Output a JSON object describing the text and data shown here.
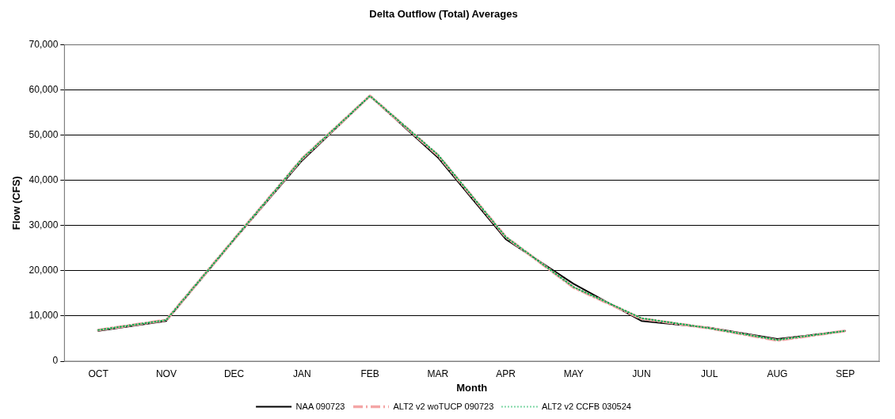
{
  "chart_data": {
    "type": "line",
    "title": "Delta Outflow (Total) Averages",
    "xlabel": "Month",
    "ylabel": "Flow (CFS)",
    "categories": [
      "OCT",
      "NOV",
      "DEC",
      "JAN",
      "FEB",
      "MAR",
      "APR",
      "MAY",
      "JUN",
      "JUL",
      "AUG",
      "SEP"
    ],
    "series": [
      {
        "name": "NAA 090723",
        "color": "#000000",
        "line_style": "solid",
        "values": [
          6700,
          8900,
          26900,
          44400,
          58700,
          45100,
          27000,
          17100,
          8900,
          7400,
          4900,
          6700
        ]
      },
      {
        "name": "ALT2 v2 woTUCP 090723",
        "color": "#f4a6a6",
        "line_style": "dashed",
        "values": [
          6900,
          9100,
          27000,
          44800,
          58700,
          45600,
          27500,
          16300,
          9400,
          7300,
          4600,
          6700
        ]
      },
      {
        "name": "ALT2 v2 CCFB 030524",
        "color": "#00b050",
        "line_style": "dotted",
        "values": [
          6900,
          9100,
          27000,
          44800,
          58700,
          45700,
          27500,
          16400,
          9500,
          7300,
          4700,
          6700
        ]
      }
    ],
    "ylim": [
      0,
      70000
    ],
    "yticks": [
      0,
      {
        "value": 10000,
        "label": "10,000"
      },
      {
        "value": 20000,
        "label": "20,000"
      },
      {
        "value": 30000,
        "label": "30,000"
      },
      {
        "value": 40000,
        "label": "40,000"
      },
      {
        "value": 50000,
        "label": "50,000"
      },
      {
        "value": 60000,
        "label": "60,000"
      },
      {
        "value": 70000,
        "label": "70,000"
      }
    ],
    "grid": "y",
    "legend": "bottom",
    "marker": "none"
  }
}
